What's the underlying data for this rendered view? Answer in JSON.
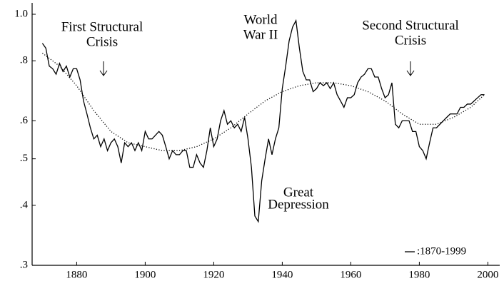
{
  "chart_data": {
    "type": "line",
    "x": [
      1870,
      1871,
      1872,
      1873,
      1874,
      1875,
      1876,
      1877,
      1878,
      1879,
      1880,
      1881,
      1882,
      1883,
      1884,
      1885,
      1886,
      1887,
      1888,
      1889,
      1890,
      1891,
      1892,
      1893,
      1894,
      1895,
      1896,
      1897,
      1898,
      1899,
      1900,
      1901,
      1902,
      1903,
      1904,
      1905,
      1906,
      1907,
      1908,
      1909,
      1910,
      1911,
      1912,
      1913,
      1914,
      1915,
      1916,
      1917,
      1918,
      1919,
      1920,
      1921,
      1922,
      1923,
      1924,
      1925,
      1926,
      1927,
      1928,
      1929,
      1930,
      1931,
      1932,
      1933,
      1934,
      1935,
      1936,
      1937,
      1938,
      1939,
      1940,
      1941,
      1942,
      1943,
      1944,
      1945,
      1946,
      1947,
      1948,
      1949,
      1950,
      1951,
      1952,
      1953,
      1954,
      1955,
      1956,
      1957,
      1958,
      1959,
      1960,
      1961,
      1962,
      1963,
      1964,
      1965,
      1966,
      1967,
      1968,
      1969,
      1970,
      1971,
      1972,
      1973,
      1974,
      1975,
      1976,
      1977,
      1978,
      1979,
      1980,
      1981,
      1982,
      1983,
      1984,
      1985,
      1986,
      1987,
      1988,
      1989,
      1990,
      1991,
      1992,
      1993,
      1994,
      1995,
      1996,
      1997,
      1998,
      1999
    ],
    "series": [
      {
        "name": ":1870-1999",
        "color": "#000000",
        "style": "solid",
        "values": [
          0.87,
          0.85,
          0.78,
          0.77,
          0.75,
          0.79,
          0.76,
          0.78,
          0.74,
          0.77,
          0.77,
          0.73,
          0.66,
          0.62,
          0.58,
          0.55,
          0.56,
          0.53,
          0.55,
          0.52,
          0.54,
          0.55,
          0.53,
          0.49,
          0.54,
          0.53,
          0.54,
          0.52,
          0.54,
          0.52,
          0.57,
          0.55,
          0.55,
          0.56,
          0.57,
          0.56,
          0.53,
          0.5,
          0.52,
          0.51,
          0.51,
          0.52,
          0.52,
          0.48,
          0.48,
          0.51,
          0.49,
          0.48,
          0.52,
          0.58,
          0.53,
          0.55,
          0.6,
          0.63,
          0.59,
          0.6,
          0.58,
          0.59,
          0.57,
          0.61,
          0.55,
          0.48,
          0.38,
          0.37,
          0.45,
          0.5,
          0.55,
          0.51,
          0.55,
          0.58,
          0.7,
          0.78,
          0.88,
          0.94,
          0.97,
          0.85,
          0.76,
          0.73,
          0.73,
          0.69,
          0.7,
          0.72,
          0.71,
          0.72,
          0.7,
          0.72,
          0.68,
          0.66,
          0.64,
          0.67,
          0.67,
          0.68,
          0.72,
          0.74,
          0.75,
          0.77,
          0.77,
          0.74,
          0.74,
          0.7,
          0.67,
          0.68,
          0.72,
          0.59,
          0.58,
          0.6,
          0.6,
          0.6,
          0.57,
          0.57,
          0.53,
          0.52,
          0.5,
          0.54,
          0.58,
          0.58,
          0.59,
          0.6,
          0.61,
          0.62,
          0.62,
          0.62,
          0.64,
          0.64,
          0.65,
          0.65,
          0.66,
          0.67,
          0.68,
          0.68
        ]
      },
      {
        "color": "#000000",
        "style": "dotted",
        "x": [
          1870,
          1875,
          1880,
          1885,
          1890,
          1895,
          1900,
          1905,
          1910,
          1915,
          1920,
          1925,
          1930,
          1935,
          1940,
          1945,
          1950,
          1955,
          1960,
          1965,
          1970,
          1975,
          1980,
          1985,
          1990,
          1995,
          1999
        ],
        "values": [
          0.83,
          0.78,
          0.71,
          0.63,
          0.57,
          0.54,
          0.53,
          0.52,
          0.52,
          0.53,
          0.55,
          0.58,
          0.62,
          0.66,
          0.69,
          0.71,
          0.72,
          0.72,
          0.71,
          0.69,
          0.66,
          0.62,
          0.59,
          0.59,
          0.61,
          0.64,
          0.68
        ]
      }
    ],
    "xlim": [
      1867,
      2003
    ],
    "xticks": [
      1880,
      1900,
      1920,
      1940,
      1960,
      1980,
      2000
    ],
    "ylim": [
      0.3,
      1.02
    ],
    "log_y": true,
    "yticks": [
      {
        "value": 0.3,
        "label": ".3"
      },
      {
        "value": 0.4,
        "label": ".4"
      },
      {
        "value": 0.5,
        "label": ".5"
      },
      {
        "value": 0.6,
        "label": ".6"
      },
      {
        "value": 0.8,
        "label": ".8"
      },
      {
        "value": 1.0,
        "label": "1.0"
      }
    ],
    "legend": "lower right",
    "annotations": [
      {
        "lines": [
          "First Structural",
          "Crisis"
        ]
      },
      {
        "lines": [
          "World",
          "War II"
        ]
      },
      {
        "lines": [
          "Second Structural",
          "Crisis"
        ]
      },
      {
        "lines": [
          "Great",
          "Depression"
        ]
      }
    ]
  }
}
